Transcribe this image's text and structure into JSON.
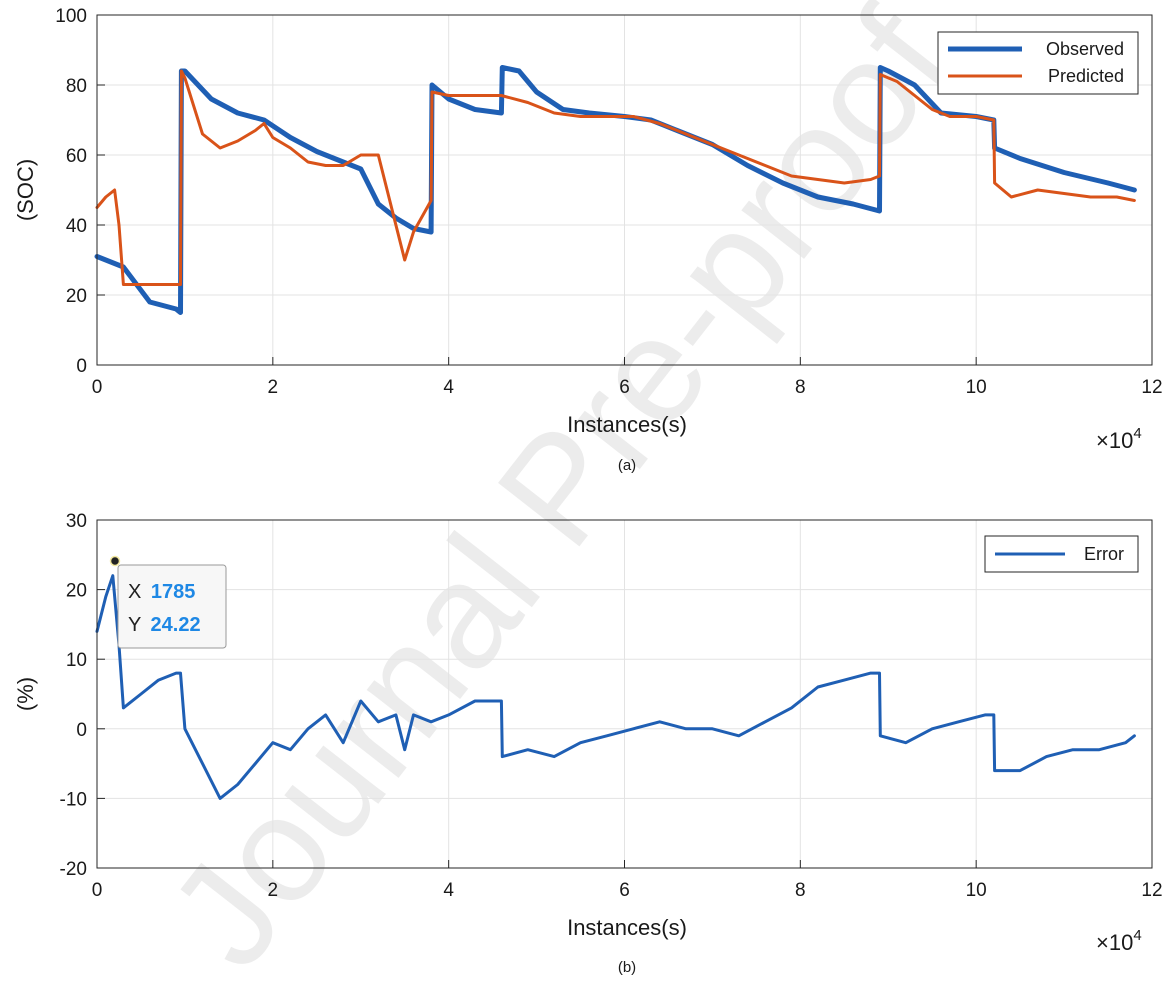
{
  "chart_data": [
    {
      "type": "line",
      "caption": "(a)",
      "xlabel": "Instances(s)",
      "ylabel": "(SOC)",
      "xlim": [
        0,
        12
      ],
      "ylim": [
        0,
        100
      ],
      "x_multiplier": "×10",
      "x_multiplier_exp": "4",
      "xticks": [
        "0",
        "2",
        "4",
        "6",
        "8",
        "10",
        "12"
      ],
      "yticks": [
        "0",
        "20",
        "40",
        "60",
        "80",
        "100"
      ],
      "grid": true,
      "legend_position": "top-right",
      "series": [
        {
          "name": "Observed",
          "color": "#1f5fb4",
          "x": [
            0,
            0.3,
            0.6,
            0.9,
            0.95,
            0.96,
            1.0,
            1.3,
            1.6,
            1.9,
            2.2,
            2.5,
            2.8,
            3.0,
            3.2,
            3.4,
            3.6,
            3.8,
            3.81,
            4.0,
            4.3,
            4.6,
            4.61,
            4.8,
            5.0,
            5.3,
            5.6,
            6.0,
            6.3,
            6.6,
            7.0,
            7.4,
            7.8,
            8.2,
            8.6,
            8.9,
            8.91,
            9.0,
            9.3,
            9.6,
            10.0,
            10.2,
            10.21,
            10.5,
            11.0,
            11.5,
            11.8
          ],
          "y": [
            31,
            28,
            18,
            16,
            15,
            84,
            84,
            76,
            72,
            70,
            65,
            61,
            58,
            56,
            46,
            42,
            39,
            38,
            80,
            76,
            73,
            72,
            85,
            84,
            78,
            73,
            72,
            71,
            70,
            67,
            63,
            57,
            52,
            48,
            46,
            44,
            85,
            84,
            80,
            72,
            71,
            70,
            62,
            59,
            55,
            52,
            50
          ]
        },
        {
          "name": "Predicted",
          "color": "#d95319",
          "x": [
            0,
            0.1,
            0.2,
            0.25,
            0.3,
            0.5,
            0.7,
            0.9,
            0.95,
            0.96,
            1.0,
            1.2,
            1.4,
            1.6,
            1.8,
            1.9,
            2.0,
            2.2,
            2.4,
            2.6,
            2.8,
            3.0,
            3.2,
            3.4,
            3.5,
            3.6,
            3.8,
            3.81,
            4.0,
            4.3,
            4.6,
            4.9,
            5.2,
            5.5,
            5.8,
            6.1,
            6.4,
            6.7,
            7.0,
            7.3,
            7.6,
            7.9,
            8.2,
            8.5,
            8.8,
            8.9,
            8.91,
            9.1,
            9.3,
            9.5,
            9.7,
            10.0,
            10.2,
            10.21,
            10.4,
            10.7,
            11.0,
            11.3,
            11.6,
            11.8
          ],
          "y": [
            45,
            48,
            50,
            40,
            23,
            23,
            23,
            23,
            23,
            84,
            82,
            66,
            62,
            64,
            67,
            69,
            65,
            62,
            58,
            57,
            57,
            60,
            60,
            40,
            30,
            38,
            47,
            78,
            77,
            77,
            77,
            75,
            72,
            71,
            71,
            71,
            69,
            66,
            63,
            60,
            57,
            54,
            53,
            52,
            53,
            54,
            83,
            81,
            77,
            73,
            71,
            71,
            70,
            52,
            48,
            50,
            49,
            48,
            48,
            47
          ]
        }
      ]
    },
    {
      "type": "line",
      "caption": "(b)",
      "xlabel": "Instances(s)",
      "ylabel": "(%)",
      "xlim": [
        0,
        12
      ],
      "ylim": [
        -20,
        30
      ],
      "x_multiplier": "×10",
      "x_multiplier_exp": "4",
      "xticks": [
        "0",
        "2",
        "4",
        "6",
        "8",
        "10",
        "12"
      ],
      "yticks": [
        "-20",
        "-10",
        "0",
        "10",
        "20",
        "30"
      ],
      "grid": true,
      "legend_position": "top-right",
      "series": [
        {
          "name": "Error",
          "color": "#1f5fb4",
          "x": [
            0,
            0.1,
            0.18,
            0.25,
            0.3,
            0.5,
            0.7,
            0.9,
            0.95,
            1.0,
            1.2,
            1.4,
            1.6,
            1.8,
            2.0,
            2.2,
            2.4,
            2.6,
            2.8,
            3.0,
            3.2,
            3.4,
            3.5,
            3.6,
            3.8,
            4.0,
            4.3,
            4.6,
            4.61,
            4.9,
            5.2,
            5.5,
            5.8,
            6.1,
            6.4,
            6.7,
            7.0,
            7.3,
            7.6,
            7.9,
            8.2,
            8.5,
            8.8,
            8.9,
            8.91,
            9.2,
            9.5,
            9.8,
            10.1,
            10.2,
            10.21,
            10.5,
            10.8,
            11.1,
            11.4,
            11.7,
            11.8
          ],
          "y": [
            14,
            19,
            22,
            12,
            3,
            5,
            7,
            8,
            8,
            0,
            -5,
            -10,
            -8,
            -5,
            -2,
            -3,
            0,
            2,
            -2,
            4,
            1,
            2,
            -3,
            2,
            1,
            2,
            4,
            4,
            -4,
            -3,
            -4,
            -2,
            -1,
            0,
            1,
            0,
            0,
            -1,
            1,
            3,
            6,
            7,
            8,
            8,
            -1,
            -2,
            0,
            1,
            2,
            2,
            -6,
            -6,
            -4,
            -3,
            -3,
            -2,
            -1
          ]
        }
      ],
      "datatip": {
        "x_label": "X",
        "x_value": "1785",
        "y_label": "Y",
        "y_value": "24.22"
      }
    }
  ],
  "watermark": "Journal Pre-proof"
}
